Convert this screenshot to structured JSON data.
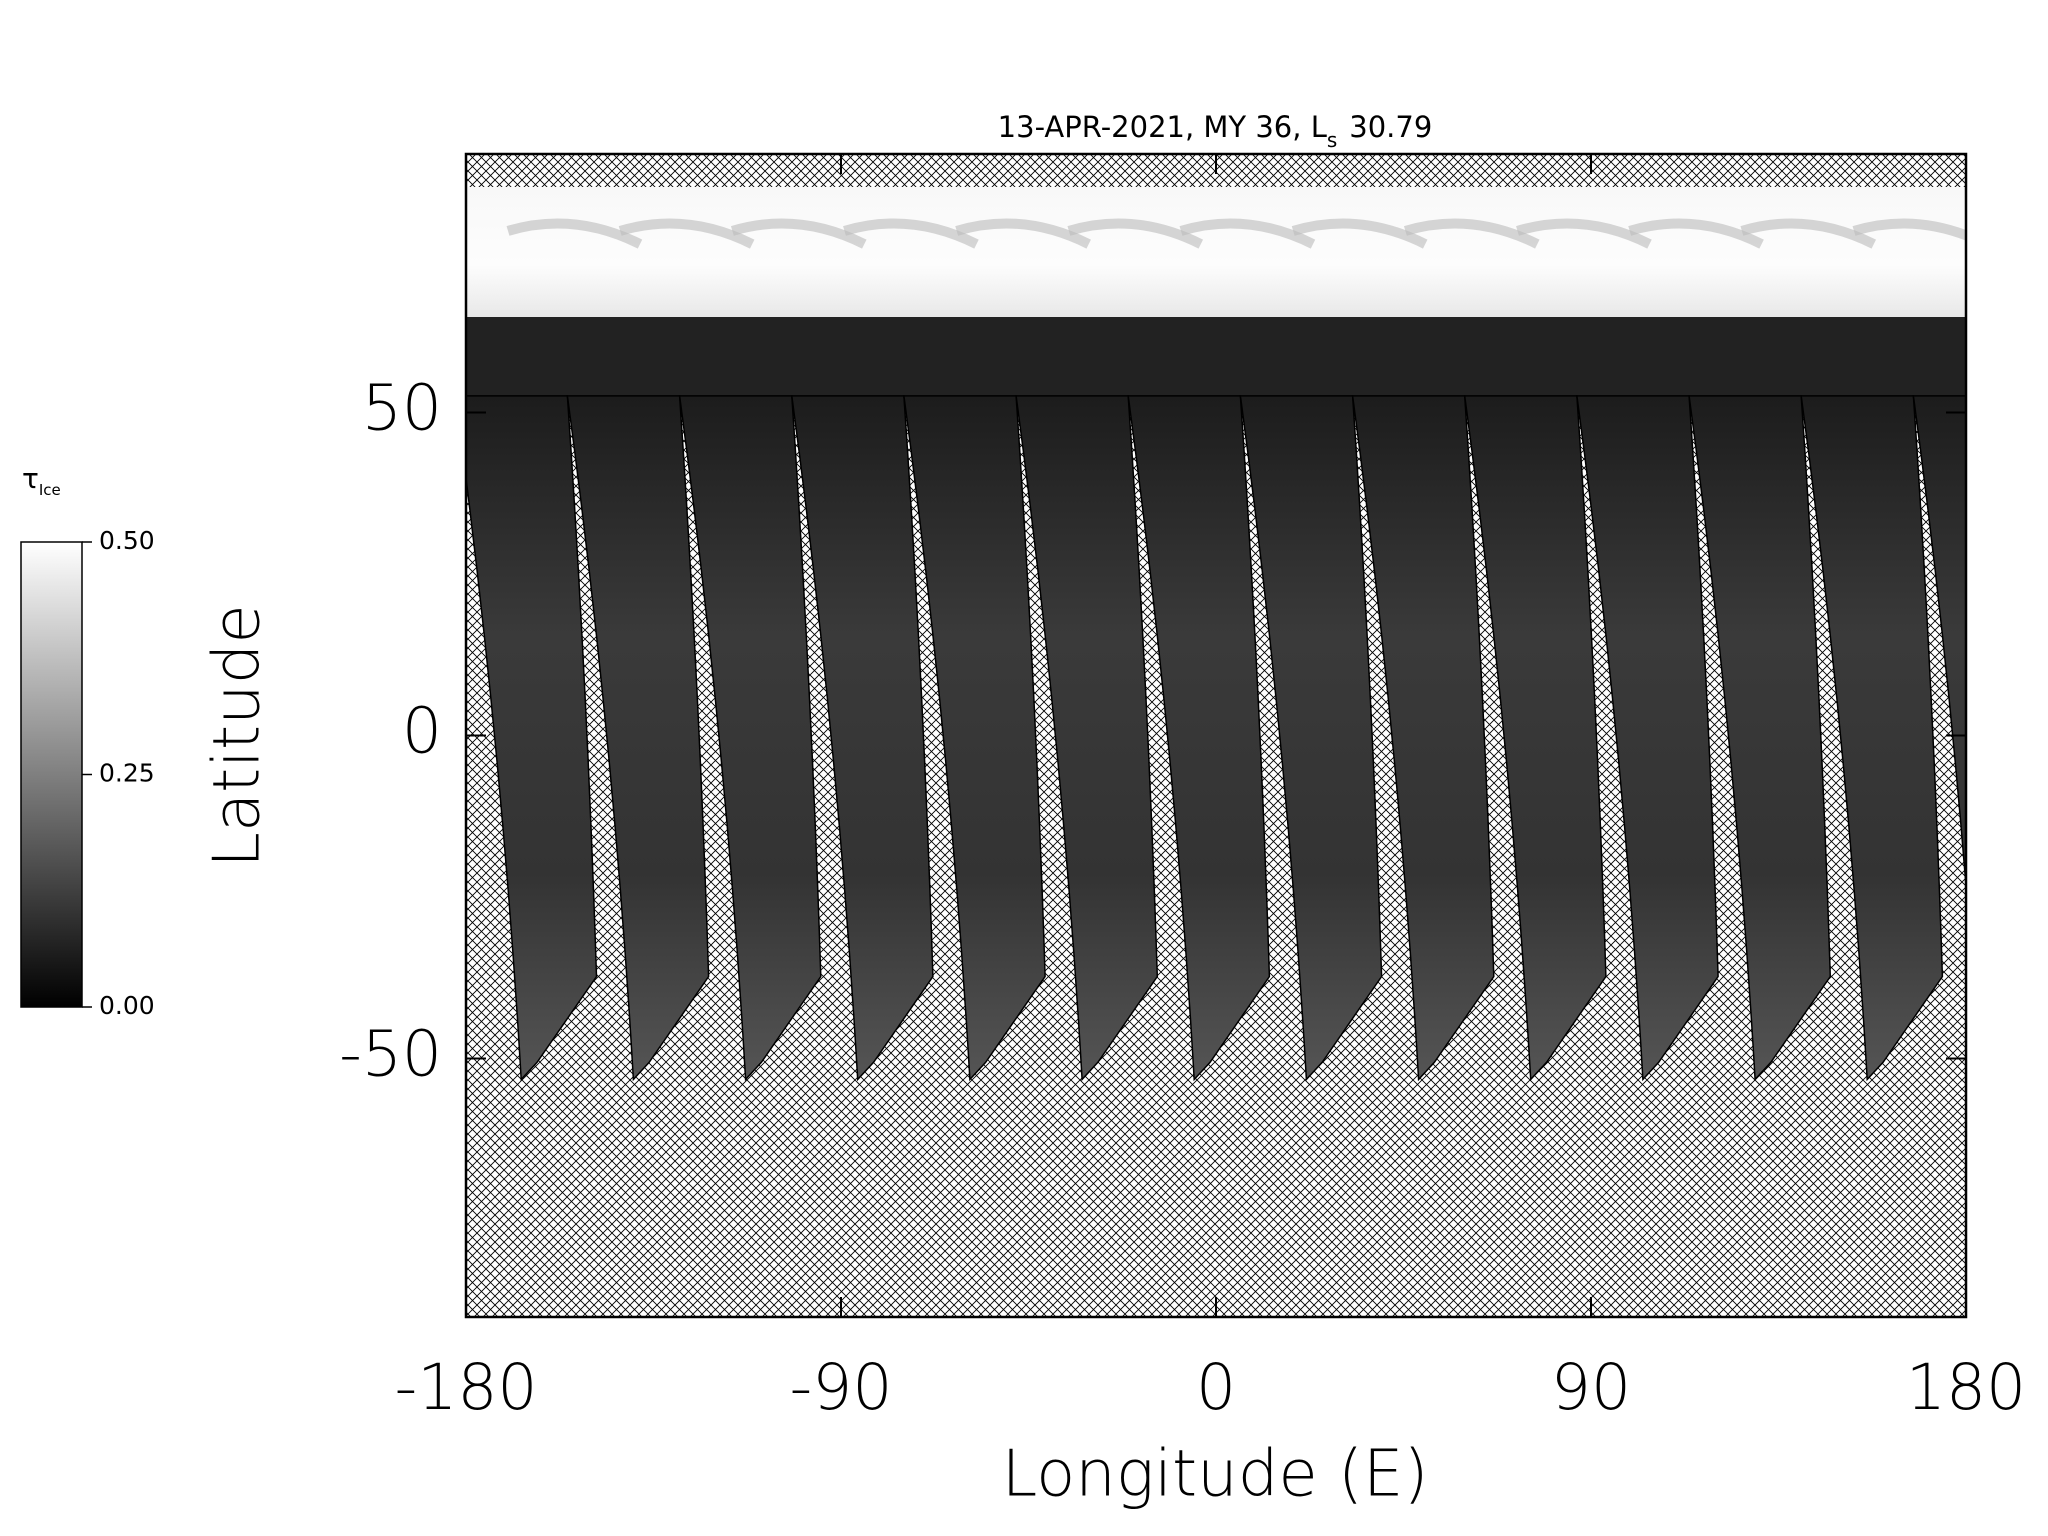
{
  "chart_data": {
    "type": "map",
    "title": {
      "text": "13-APR-2021, MY 36,  L",
      "subscript": "s",
      "value": "30.79"
    },
    "xlabel": "Longitude (E)",
    "ylabel": "Latitude",
    "xlim": [
      -180,
      180
    ],
    "ylim": [
      -90,
      90
    ],
    "xticks": [
      -180,
      -90,
      0,
      90,
      180
    ],
    "yticks": [
      -50,
      0,
      50
    ],
    "colorbar": {
      "label": "τ",
      "label_subscript": "Ice",
      "lim": [
        0,
        0.5
      ],
      "ticks": [
        {
          "value": 0,
          "label": "0.00"
        },
        {
          "value": 0.25,
          "label": "0.25"
        },
        {
          "value": 0.5,
          "label": "0.50"
        }
      ]
    }
  }
}
